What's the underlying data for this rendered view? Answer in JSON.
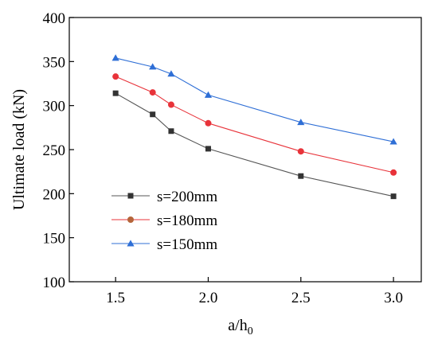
{
  "chart_data": {
    "type": "line",
    "xlabel": "a/h",
    "xlabel_subscript": "0",
    "ylabel": "Ultimate load (kN)",
    "xlim": [
      1.25,
      3.15
    ],
    "ylim": [
      100,
      400
    ],
    "xticks": [
      1.5,
      2.0,
      2.5,
      3.0
    ],
    "xtick_labels": [
      "1.5",
      "2.0",
      "2.5",
      "3.0"
    ],
    "yticks": [
      100,
      150,
      200,
      250,
      300,
      350,
      400
    ],
    "ytick_labels": [
      "100",
      "150",
      "200",
      "250",
      "300",
      "350",
      "400"
    ],
    "grid": false,
    "legend_position": "bottom-left",
    "x": [
      1.5,
      1.7,
      1.8,
      2.0,
      2.5,
      3.0
    ],
    "series": [
      {
        "name": "s=200mm",
        "marker": "square",
        "color": "#333333",
        "line_color": "#555555",
        "values": [
          314,
          290,
          271,
          251,
          220,
          197
        ]
      },
      {
        "name": "s=180mm",
        "marker": "circle",
        "color": "#e8333a",
        "line_color": "#e8333a",
        "values": [
          333,
          315,
          301,
          280,
          248,
          224
        ]
      },
      {
        "name": "s=150mm",
        "marker": "triangle",
        "color": "#2f6fd6",
        "line_color": "#2f6fd6",
        "values": [
          354,
          344,
          336,
          312,
          281,
          259
        ]
      }
    ],
    "legend_marker_colors": [
      "#333333",
      "#b5653a",
      "#2f6fd6"
    ]
  }
}
